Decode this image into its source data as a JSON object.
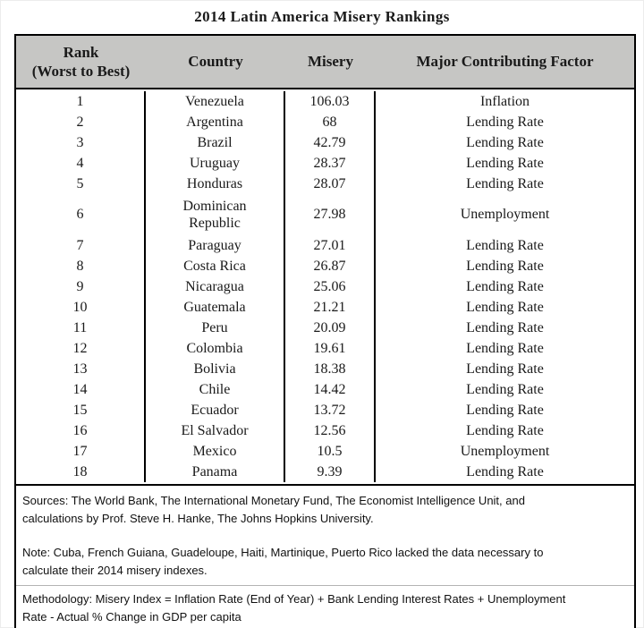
{
  "title": "2014 Latin America Misery Rankings",
  "table": {
    "headers": {
      "rank": "Rank\n(Worst to Best)",
      "country": "Country",
      "misery": "Misery",
      "factor": "Major Contributing Factor"
    },
    "rows": [
      {
        "rank": "1",
        "country": "Venezuela",
        "misery": "106.03",
        "factor": "Inflation"
      },
      {
        "rank": "2",
        "country": "Argentina",
        "misery": "68",
        "factor": "Lending Rate"
      },
      {
        "rank": "3",
        "country": "Brazil",
        "misery": "42.79",
        "factor": "Lending Rate"
      },
      {
        "rank": "4",
        "country": "Uruguay",
        "misery": "28.37",
        "factor": "Lending Rate"
      },
      {
        "rank": "5",
        "country": "Honduras",
        "misery": "28.07",
        "factor": "Lending Rate"
      },
      {
        "rank": "6",
        "country": "Dominican\nRepublic",
        "misery": "27.98",
        "factor": "Unemployment"
      },
      {
        "rank": "7",
        "country": "Paraguay",
        "misery": "27.01",
        "factor": "Lending Rate"
      },
      {
        "rank": "8",
        "country": "Costa Rica",
        "misery": "26.87",
        "factor": "Lending Rate"
      },
      {
        "rank": "9",
        "country": "Nicaragua",
        "misery": "25.06",
        "factor": "Lending Rate"
      },
      {
        "rank": "10",
        "country": "Guatemala",
        "misery": "21.21",
        "factor": "Lending Rate"
      },
      {
        "rank": "11",
        "country": "Peru",
        "misery": "20.09",
        "factor": "Lending Rate"
      },
      {
        "rank": "12",
        "country": "Colombia",
        "misery": "19.61",
        "factor": "Lending Rate"
      },
      {
        "rank": "13",
        "country": "Bolivia",
        "misery": "18.38",
        "factor": "Lending Rate"
      },
      {
        "rank": "14",
        "country": "Chile",
        "misery": "14.42",
        "factor": "Lending Rate"
      },
      {
        "rank": "15",
        "country": "Ecuador",
        "misery": "13.72",
        "factor": "Lending Rate"
      },
      {
        "rank": "16",
        "country": "El Salvador",
        "misery": "12.56",
        "factor": "Lending Rate"
      },
      {
        "rank": "17",
        "country": "Mexico",
        "misery": "10.5",
        "factor": "Unemployment"
      },
      {
        "rank": "18",
        "country": "Panama",
        "misery": "9.39",
        "factor": "Lending Rate"
      }
    ]
  },
  "footer": {
    "sources": "Sources: The World Bank, The International Monetary Fund, The Economist Intelligence Unit, and\ncalculations by Prof. Steve H. Hanke, The Johns Hopkins University.",
    "note": "Note: Cuba, French Guiana, Guadeloupe,  Haiti, Martinique, Puerto Rico lacked the data necessary to\ncalculate their 2014 misery indexes.",
    "methodology": "Methodology: Misery Index = Inflation Rate (End of Year) + Bank Lending Interest Rates + Unemployment\nRate - Actual % Change in GDP per capita"
  },
  "colors": {
    "header_bg": "#c6c6c4",
    "border": "#000000",
    "divider_light": "#b3b3b3",
    "text": "#1a1a1a"
  },
  "chart_data": {
    "type": "table",
    "title": "2014 Latin America Misery Rankings",
    "columns": [
      "Rank (Worst to Best)",
      "Country",
      "Misery",
      "Major Contributing Factor"
    ],
    "rows": [
      [
        1,
        "Venezuela",
        106.03,
        "Inflation"
      ],
      [
        2,
        "Argentina",
        68,
        "Lending Rate"
      ],
      [
        3,
        "Brazil",
        42.79,
        "Lending Rate"
      ],
      [
        4,
        "Uruguay",
        28.37,
        "Lending Rate"
      ],
      [
        5,
        "Honduras",
        28.07,
        "Lending Rate"
      ],
      [
        6,
        "Dominican Republic",
        27.98,
        "Unemployment"
      ],
      [
        7,
        "Paraguay",
        27.01,
        "Lending Rate"
      ],
      [
        8,
        "Costa Rica",
        26.87,
        "Lending Rate"
      ],
      [
        9,
        "Nicaragua",
        25.06,
        "Lending Rate"
      ],
      [
        10,
        "Guatemala",
        21.21,
        "Lending Rate"
      ],
      [
        11,
        "Peru",
        20.09,
        "Lending Rate"
      ],
      [
        12,
        "Colombia",
        19.61,
        "Lending Rate"
      ],
      [
        13,
        "Bolivia",
        18.38,
        "Lending Rate"
      ],
      [
        14,
        "Chile",
        14.42,
        "Lending Rate"
      ],
      [
        15,
        "Ecuador",
        13.72,
        "Lending Rate"
      ],
      [
        16,
        "El Salvador",
        12.56,
        "Lending Rate"
      ],
      [
        17,
        "Mexico",
        10.5,
        "Unemployment"
      ],
      [
        18,
        "Panama",
        9.39,
        "Lending Rate"
      ]
    ]
  }
}
